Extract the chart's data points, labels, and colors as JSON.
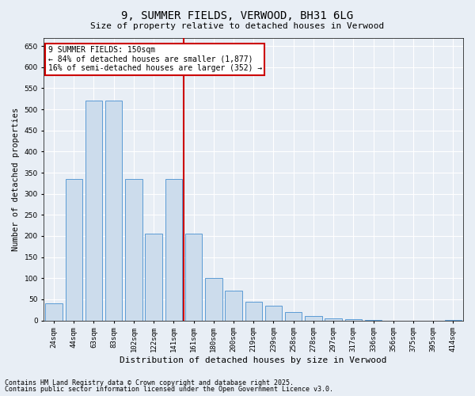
{
  "title": "9, SUMMER FIELDS, VERWOOD, BH31 6LG",
  "subtitle": "Size of property relative to detached houses in Verwood",
  "xlabel": "Distribution of detached houses by size in Verwood",
  "ylabel": "Number of detached properties",
  "footnote1": "Contains HM Land Registry data © Crown copyright and database right 2025.",
  "footnote2": "Contains public sector information licensed under the Open Government Licence v3.0.",
  "annotation_line1": "9 SUMMER FIELDS: 150sqm",
  "annotation_line2": "← 84% of detached houses are smaller (1,877)",
  "annotation_line3": "16% of semi-detached houses are larger (352) →",
  "vline_bin": 7,
  "bar_color": "#ccdcec",
  "bar_edge_color": "#5b9bd5",
  "vline_color": "#cc0000",
  "categories": [
    "24sqm",
    "44sqm",
    "63sqm",
    "83sqm",
    "102sqm",
    "122sqm",
    "141sqm",
    "161sqm",
    "180sqm",
    "200sqm",
    "219sqm",
    "239sqm",
    "258sqm",
    "278sqm",
    "297sqm",
    "317sqm",
    "336sqm",
    "356sqm",
    "375sqm",
    "395sqm",
    "414sqm"
  ],
  "values": [
    40,
    335,
    520,
    520,
    335,
    205,
    335,
    205,
    100,
    70,
    45,
    35,
    20,
    10,
    5,
    2,
    1,
    0,
    0,
    0,
    1
  ],
  "ylim": [
    0,
    670
  ],
  "yticks": [
    0,
    50,
    100,
    150,
    200,
    250,
    300,
    350,
    400,
    450,
    500,
    550,
    600,
    650
  ],
  "background_color": "#e8eef5",
  "plot_bg_color": "#e8eef5",
  "grid_color": "#ffffff",
  "title_fontsize": 10,
  "subtitle_fontsize": 8,
  "tick_fontsize": 6.5,
  "ylabel_fontsize": 7.5,
  "xlabel_fontsize": 8,
  "annot_fontsize": 7,
  "footnote_fontsize": 6
}
